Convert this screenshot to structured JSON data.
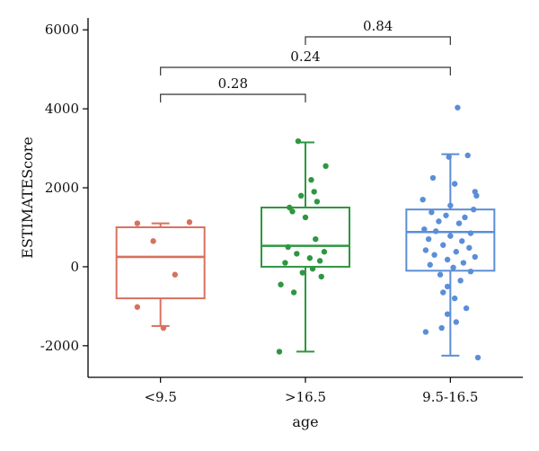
{
  "chart_data": {
    "type": "boxplot",
    "xlabel": "age",
    "ylabel": "ESTIMATEScore",
    "ylim": [
      -2800,
      6300
    ],
    "yticks": [
      -2000,
      0,
      2000,
      4000,
      6000
    ],
    "yticks_labels": [
      "-2000",
      "0",
      "2000",
      "4000",
      "6000"
    ],
    "categories": [
      "<9.5",
      ">16.5",
      "9.5-16.5"
    ],
    "grid": false,
    "legend": "none",
    "groups": [
      {
        "category": "<9.5",
        "color": "#d9705f",
        "box": {
          "whisker_low": -1500,
          "q1": -800,
          "median": 250,
          "q3": 1000,
          "whisker_high": 1100
        },
        "points": [
          {
            "x": -0.16,
            "y": 1100
          },
          {
            "x": 0.2,
            "y": 1130
          },
          {
            "x": -0.05,
            "y": 650
          },
          {
            "x": 0.1,
            "y": -200
          },
          {
            "x": -0.16,
            "y": -1020
          },
          {
            "x": 0.02,
            "y": -1550
          }
        ]
      },
      {
        "category": ">16.5",
        "color": "#2e9641",
        "box": {
          "whisker_low": -2150,
          "q1": 0,
          "median": 530,
          "q3": 1500,
          "whisker_high": 3150
        },
        "points": [
          {
            "x": -0.05,
            "y": 3180
          },
          {
            "x": 0.14,
            "y": 2550
          },
          {
            "x": 0.04,
            "y": 2200
          },
          {
            "x": 0.06,
            "y": 1900
          },
          {
            "x": -0.03,
            "y": 1800
          },
          {
            "x": 0.08,
            "y": 1650
          },
          {
            "x": -0.11,
            "y": 1500
          },
          {
            "x": -0.09,
            "y": 1400
          },
          {
            "x": 0.0,
            "y": 1250
          },
          {
            "x": 0.07,
            "y": 700
          },
          {
            "x": -0.12,
            "y": 500
          },
          {
            "x": 0.13,
            "y": 380
          },
          {
            "x": -0.06,
            "y": 330
          },
          {
            "x": 0.03,
            "y": 220
          },
          {
            "x": 0.1,
            "y": 150
          },
          {
            "x": -0.14,
            "y": 100
          },
          {
            "x": 0.05,
            "y": -50
          },
          {
            "x": -0.02,
            "y": -150
          },
          {
            "x": 0.11,
            "y": -250
          },
          {
            "x": -0.17,
            "y": -450
          },
          {
            "x": -0.08,
            "y": -650
          },
          {
            "x": -0.18,
            "y": -2150
          }
        ]
      },
      {
        "category": "9.5-16.5",
        "color": "#5b8ed8",
        "box": {
          "whisker_low": -2250,
          "q1": -100,
          "median": 880,
          "q3": 1450,
          "whisker_high": 2850
        },
        "points": [
          {
            "x": 0.05,
            "y": 4030
          },
          {
            "x": 0.12,
            "y": 2820
          },
          {
            "x": -0.01,
            "y": 2780
          },
          {
            "x": -0.12,
            "y": 2250
          },
          {
            "x": 0.03,
            "y": 2100
          },
          {
            "x": 0.17,
            "y": 1900
          },
          {
            "x": 0.18,
            "y": 1800
          },
          {
            "x": -0.19,
            "y": 1700
          },
          {
            "x": 0.0,
            "y": 1550
          },
          {
            "x": 0.16,
            "y": 1450
          },
          {
            "x": -0.13,
            "y": 1380
          },
          {
            "x": -0.03,
            "y": 1300
          },
          {
            "x": 0.1,
            "y": 1250
          },
          {
            "x": -0.08,
            "y": 1150
          },
          {
            "x": 0.06,
            "y": 1100
          },
          {
            "x": -0.18,
            "y": 950
          },
          {
            "x": -0.1,
            "y": 900
          },
          {
            "x": 0.14,
            "y": 850
          },
          {
            "x": 0.0,
            "y": 780
          },
          {
            "x": -0.15,
            "y": 700
          },
          {
            "x": 0.08,
            "y": 650
          },
          {
            "x": -0.05,
            "y": 550
          },
          {
            "x": 0.13,
            "y": 480
          },
          {
            "x": -0.17,
            "y": 420
          },
          {
            "x": 0.04,
            "y": 380
          },
          {
            "x": -0.11,
            "y": 300
          },
          {
            "x": 0.17,
            "y": 250
          },
          {
            "x": -0.02,
            "y": 180
          },
          {
            "x": 0.09,
            "y": 100
          },
          {
            "x": -0.14,
            "y": 50
          },
          {
            "x": 0.02,
            "y": -20
          },
          {
            "x": 0.14,
            "y": -120
          },
          {
            "x": -0.07,
            "y": -200
          },
          {
            "x": 0.07,
            "y": -350
          },
          {
            "x": -0.02,
            "y": -500
          },
          {
            "x": -0.05,
            "y": -650
          },
          {
            "x": 0.03,
            "y": -800
          },
          {
            "x": 0.11,
            "y": -1050
          },
          {
            "x": -0.02,
            "y": -1200
          },
          {
            "x": 0.04,
            "y": -1400
          },
          {
            "x": -0.06,
            "y": -1550
          },
          {
            "x": -0.17,
            "y": -1650
          },
          {
            "x": 0.19,
            "y": -2300
          }
        ]
      }
    ],
    "comparisons": [
      {
        "from": 1,
        "to": 2,
        "label": "0.84",
        "level": 2
      },
      {
        "from": 0,
        "to": 2,
        "label": "0.24",
        "level": 1
      },
      {
        "from": 0,
        "to": 1,
        "label": "0.28",
        "level": 0
      }
    ]
  }
}
